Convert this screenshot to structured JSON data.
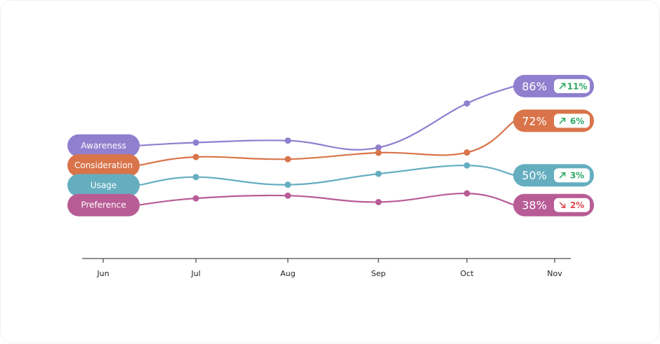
{
  "chart_data": {
    "type": "line",
    "x": [
      "Jun",
      "Jul",
      "Aug",
      "Sep",
      "Oct",
      "Nov"
    ],
    "series": [
      {
        "name": "Awareness",
        "color": "#8f7fce",
        "values": [
          62,
          63.2,
          64,
          61.2,
          79,
          86
        ],
        "end_label": "86%",
        "delta": {
          "label": "11%",
          "direction": "up",
          "icon": "arrow-up-right-icon"
        }
      },
      {
        "name": "Consideration",
        "color": "#d9744a",
        "values": [
          54,
          57.4,
          56.5,
          59.1,
          59.2,
          72
        ],
        "end_label": "72%",
        "delta": {
          "label": "6%",
          "direction": "up",
          "icon": "arrow-up-right-icon"
        }
      },
      {
        "name": "Usage",
        "color": "#65aec0",
        "values": [
          46,
          49.3,
          46.2,
          50.6,
          54,
          50
        ],
        "end_label": "50%",
        "delta": {
          "label": "3%",
          "direction": "up",
          "icon": "arrow-up-right-icon"
        }
      },
      {
        "name": "Preference",
        "color": "#b85c96",
        "values": [
          38,
          40.7,
          41.8,
          39.2,
          42.7,
          38
        ],
        "end_label": "38%",
        "delta": {
          "label": "2%",
          "direction": "down",
          "icon": "arrow-down-right-icon"
        }
      }
    ],
    "colors": {
      "up": "#2ea866",
      "down": "#e0484e"
    },
    "ylim": [
      30,
      95
    ],
    "grid": false,
    "legend": "left (series name pills at line starts)"
  }
}
